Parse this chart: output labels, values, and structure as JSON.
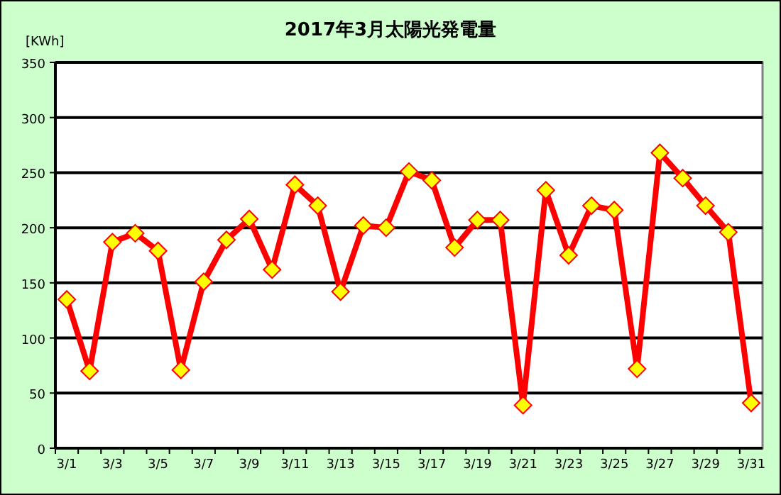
{
  "chart_data": {
    "type": "line",
    "title": "2017年3月太陽光発電量",
    "ylabel": "[KWh]",
    "categories": [
      "3/1",
      null,
      "3/3",
      null,
      "3/5",
      null,
      "3/7",
      null,
      "3/9",
      null,
      "3/11",
      null,
      "3/13",
      null,
      "3/15",
      null,
      "3/17",
      null,
      "3/19",
      null,
      "3/21",
      null,
      "3/23",
      null,
      "3/25",
      null,
      "3/27",
      null,
      "3/29",
      null,
      "3/31"
    ],
    "series": [
      {
        "color": "#ff0000",
        "values": [
          135,
          70,
          187,
          195,
          179,
          71,
          151,
          189,
          208,
          162,
          239,
          220,
          142,
          202,
          200,
          251,
          243,
          182,
          207,
          207,
          39,
          234,
          175,
          220,
          216,
          72,
          268,
          245,
          220,
          196,
          41
        ]
      }
    ],
    "ylim": [
      0,
      350
    ],
    "yticks": [
      0,
      50,
      100,
      150,
      200,
      250,
      300,
      350
    ],
    "grid": "y",
    "marker": "diamond",
    "line_style": "solid"
  }
}
